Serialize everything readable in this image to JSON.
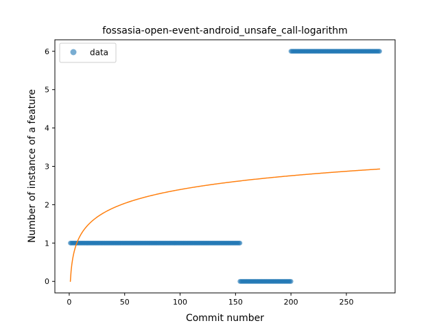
{
  "chart_data": {
    "type": "scatter",
    "title": "fossasia-open-event-android_unsafe_call-logarithm",
    "xlabel": "Commit number",
    "ylabel": "Number of instance of a feature",
    "xlim": [
      -12.95,
      293.95
    ],
    "ylim": [
      -0.3,
      6.3
    ],
    "xticks": [
      0,
      50,
      100,
      150,
      200,
      250
    ],
    "yticks": [
      0,
      1,
      2,
      3,
      4,
      5,
      6
    ],
    "grid": false,
    "legend": {
      "placement": "upper-left",
      "entries": [
        "data"
      ]
    },
    "series": [
      {
        "name": "data",
        "kind": "scatter",
        "color": "#1f77b4",
        "segments": [
          {
            "x_start": 1,
            "x_end": 154,
            "y": 1
          },
          {
            "x_start": 154,
            "x_end": 200,
            "y": 0
          },
          {
            "x_start": 200,
            "x_end": 280,
            "y": 6
          }
        ]
      },
      {
        "kind": "line",
        "color": "#ff7f0e",
        "function": "logarithm",
        "formula": {
          "a": 0.52,
          "b": 0
        },
        "x_range": [
          1,
          280
        ]
      }
    ],
    "colors": {
      "scatter": "#1f77b4",
      "fit_line": "#ff7f0e",
      "axes": "#000000",
      "legend_border": "#cccccc"
    }
  }
}
